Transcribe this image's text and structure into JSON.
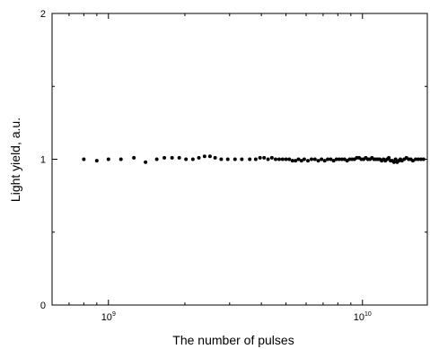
{
  "chart_data": {
    "type": "scatter",
    "xlabel": "The number of pulses",
    "ylabel": "Light yield, a.u.",
    "x_scale": "log",
    "xlim": [
      600000000,
      18000000000
    ],
    "ylim": [
      0,
      2
    ],
    "y_ticks": [
      {
        "value": 0,
        "label": "0"
      },
      {
        "value": 1,
        "label": "1"
      },
      {
        "value": 2,
        "label": "2"
      }
    ],
    "x_ticks": [
      {
        "value": 1000000000,
        "base": "10",
        "exp": "9"
      },
      {
        "value": 10000000000,
        "base": "10",
        "exp": "10"
      }
    ],
    "grid": false,
    "legend": "none",
    "marker_color": "#000000",
    "series": [
      {
        "points": [
          [
            800000000,
            1.0
          ],
          [
            900000000,
            0.99
          ],
          [
            1000000000,
            1.0
          ],
          [
            1120000000,
            1.0
          ],
          [
            1260000000,
            1.01
          ],
          [
            1400000000,
            0.98
          ],
          [
            1550000000,
            1.0
          ],
          [
            1660000000,
            1.01
          ],
          [
            1780000000,
            1.01
          ],
          [
            1900000000,
            1.01
          ],
          [
            2020000000,
            1.0
          ],
          [
            2150000000,
            1.0
          ],
          [
            2270000000,
            1.01
          ],
          [
            2390000000,
            1.02
          ],
          [
            2510000000,
            1.02
          ],
          [
            2630000000,
            1.01
          ],
          [
            2780000000,
            1.0
          ],
          [
            2950000000,
            1.0
          ],
          [
            3150000000,
            1.0
          ],
          [
            3350000000,
            1.0
          ],
          [
            3600000000,
            1.0
          ],
          [
            3800000000,
            1.0
          ],
          [
            3950000000,
            1.01
          ],
          [
            4100000000,
            1.01
          ],
          [
            4250000000,
            1.0
          ],
          [
            4400000000,
            1.01
          ],
          [
            4550000000,
            1.0
          ],
          [
            4700000000,
            1.0
          ],
          [
            4850000000,
            1.0
          ],
          [
            5000000000,
            1.0
          ],
          [
            5150000000,
            1.0
          ],
          [
            5300000000,
            0.99
          ],
          [
            5450000000,
            0.99
          ],
          [
            5600000000,
            1.0
          ],
          [
            5750000000,
            0.99
          ],
          [
            5900000000,
            1.0
          ],
          [
            6100000000,
            0.99
          ],
          [
            6300000000,
            1.0
          ],
          [
            6500000000,
            1.0
          ],
          [
            6700000000,
            0.99
          ],
          [
            6900000000,
            1.0
          ],
          [
            7100000000,
            0.99
          ],
          [
            7300000000,
            1.0
          ],
          [
            7500000000,
            1.0
          ],
          [
            7700000000,
            0.99
          ],
          [
            7900000000,
            1.0
          ],
          [
            8100000000,
            1.0
          ],
          [
            8300000000,
            1.0
          ],
          [
            8500000000,
            1.0
          ],
          [
            8700000000,
            0.99
          ],
          [
            8900000000,
            1.0
          ],
          [
            9100000000,
            1.0
          ],
          [
            9300000000,
            1.0
          ],
          [
            9500000000,
            1.01
          ],
          [
            9700000000,
            1.01
          ],
          [
            9900000000,
            1.0
          ],
          [
            10100000000,
            1.0
          ],
          [
            10300000000,
            1.01
          ],
          [
            10500000000,
            1.0
          ],
          [
            10700000000,
            1.0
          ],
          [
            10900000000,
            1.01
          ],
          [
            11100000000,
            1.0
          ],
          [
            11300000000,
            1.0
          ],
          [
            11500000000,
            1.0
          ],
          [
            11700000000,
            1.0
          ],
          [
            11900000000,
            0.99
          ],
          [
            12100000000,
            1.0
          ],
          [
            12300000000,
            0.99
          ],
          [
            12500000000,
            1.0
          ],
          [
            12700000000,
            1.01
          ],
          [
            12900000000,
            0.99
          ],
          [
            13100000000,
            0.99
          ],
          [
            13300000000,
            0.98
          ],
          [
            13500000000,
            1.0
          ],
          [
            13700000000,
            0.98
          ],
          [
            13900000000,
            0.99
          ],
          [
            14100000000,
            1.0
          ],
          [
            14300000000,
            0.99
          ],
          [
            14600000000,
            1.0
          ],
          [
            14900000000,
            1.01
          ],
          [
            15200000000,
            1.0
          ],
          [
            15500000000,
            1.0
          ],
          [
            15800000000,
            0.99
          ],
          [
            16200000000,
            1.0
          ],
          [
            16600000000,
            1.0
          ],
          [
            17000000000,
            1.0
          ],
          [
            17400000000,
            1.0
          ]
        ]
      }
    ]
  }
}
